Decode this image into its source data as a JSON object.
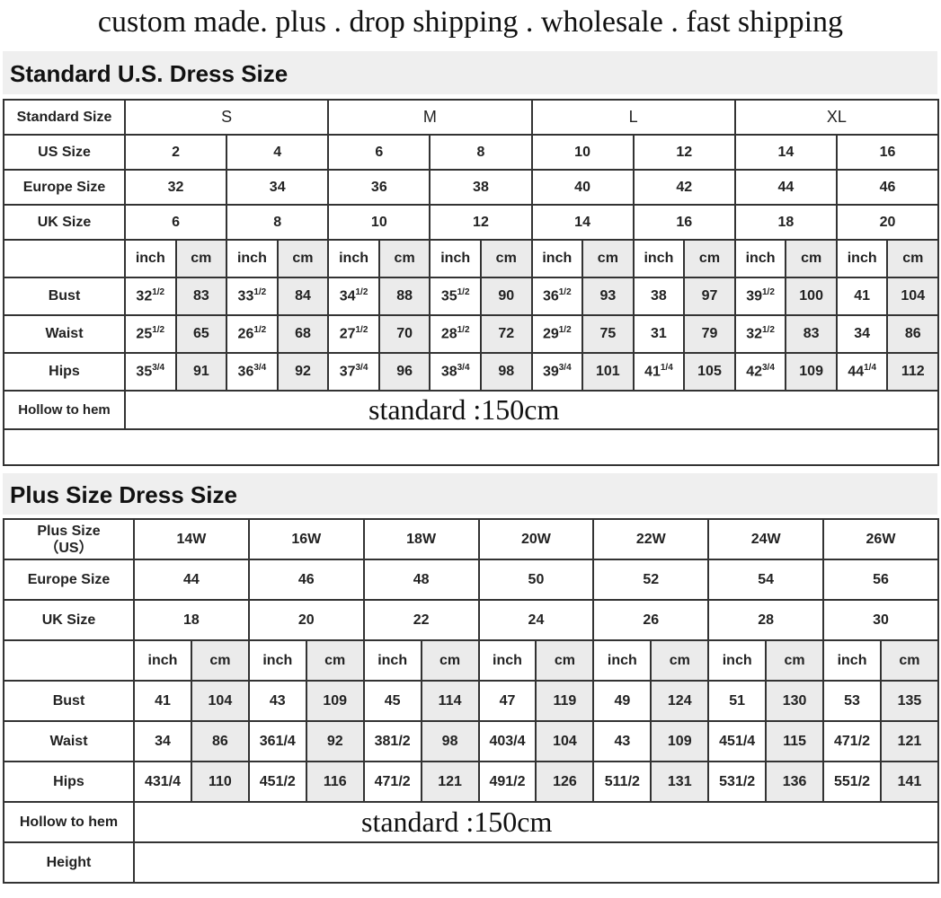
{
  "headline": "custom made. plus .  drop shipping . wholesale . fast shipping",
  "standard": {
    "title": "Standard U.S. Dress Size",
    "row_labels": {
      "standard_size": "Standard Size",
      "us": "US Size",
      "europe": "Europe Size",
      "uk": "UK Size",
      "bust": "Bust",
      "waist": "Waist",
      "hips": "Hips",
      "hollow": "Hollow to hem"
    },
    "groups": [
      "S",
      "M",
      "L",
      "XL"
    ],
    "us": [
      "2",
      "4",
      "6",
      "8",
      "10",
      "12",
      "14",
      "16"
    ],
    "europe": [
      "32",
      "34",
      "36",
      "38",
      "40",
      "42",
      "44",
      "46"
    ],
    "uk": [
      "6",
      "8",
      "10",
      "12",
      "14",
      "16",
      "18",
      "20"
    ],
    "unit_inch": "inch",
    "unit_cm": "cm",
    "bust": {
      "inch": [
        {
          "w": "32",
          "f": "1/2"
        },
        {
          "w": "33",
          "f": "1/2"
        },
        {
          "w": "34",
          "f": "1/2"
        },
        {
          "w": "35",
          "f": "1/2"
        },
        {
          "w": "36",
          "f": "1/2"
        },
        {
          "w": "38",
          "f": ""
        },
        {
          "w": "39",
          "f": "1/2"
        },
        {
          "w": "41",
          "f": ""
        }
      ],
      "cm": [
        "83",
        "84",
        "88",
        "90",
        "93",
        "97",
        "100",
        "104"
      ]
    },
    "waist": {
      "inch": [
        {
          "w": "25",
          "f": "1/2"
        },
        {
          "w": "26",
          "f": "1/2"
        },
        {
          "w": "27",
          "f": "1/2"
        },
        {
          "w": "28",
          "f": "1/2"
        },
        {
          "w": "29",
          "f": "1/2"
        },
        {
          "w": "31",
          "f": ""
        },
        {
          "w": "32",
          "f": "1/2"
        },
        {
          "w": "34",
          "f": ""
        }
      ],
      "cm": [
        "65",
        "68",
        "70",
        "72",
        "75",
        "79",
        "83",
        "86"
      ]
    },
    "hips": {
      "inch": [
        {
          "w": "35",
          "f": "3/4"
        },
        {
          "w": "36",
          "f": "3/4"
        },
        {
          "w": "37",
          "f": "3/4"
        },
        {
          "w": "38",
          "f": "3/4"
        },
        {
          "w": "39",
          "f": "3/4"
        },
        {
          "w": "41",
          "f": "1/4"
        },
        {
          "w": "42",
          "f": "3/4"
        },
        {
          "w": "44",
          "f": "1/4"
        }
      ],
      "cm": [
        "91",
        "92",
        "96",
        "98",
        "101",
        "105",
        "109",
        "112"
      ]
    },
    "hollow_value": "standard :150cm"
  },
  "plus": {
    "title": "Plus Size Dress Size",
    "row_labels": {
      "plus_size": "Plus Size",
      "plus_size_sub": "（US）",
      "europe": "Europe Size",
      "uk": "UK Size",
      "bust": "Bust",
      "waist": "Waist",
      "hips": "Hips",
      "hollow": "Hollow to hem",
      "height": "Height"
    },
    "sizes": [
      "14W",
      "16W",
      "18W",
      "20W",
      "22W",
      "24W",
      "26W"
    ],
    "europe": [
      "44",
      "46",
      "48",
      "50",
      "52",
      "54",
      "56"
    ],
    "uk": [
      "18",
      "20",
      "22",
      "24",
      "26",
      "28",
      "30"
    ],
    "unit_inch": "inch",
    "unit_cm": "cm",
    "bust": {
      "inch": [
        "41",
        "43",
        "45",
        "47",
        "49",
        "51",
        "53"
      ],
      "cm": [
        "104",
        "109",
        "114",
        "119",
        "124",
        "130",
        "135"
      ]
    },
    "waist": {
      "inch": [
        "34",
        "361/4",
        "381/2",
        "403/4",
        "43",
        "451/4",
        "471/2"
      ],
      "cm": [
        "86",
        "92",
        "98",
        "104",
        "109",
        "115",
        "121"
      ]
    },
    "hips": {
      "inch": [
        "431/4",
        "451/2",
        "471/2",
        "491/2",
        "511/2",
        "531/2",
        "551/2"
      ],
      "cm": [
        "110",
        "116",
        "121",
        "126",
        "131",
        "136",
        "141"
      ]
    },
    "hollow_value": "standard :150cm"
  }
}
